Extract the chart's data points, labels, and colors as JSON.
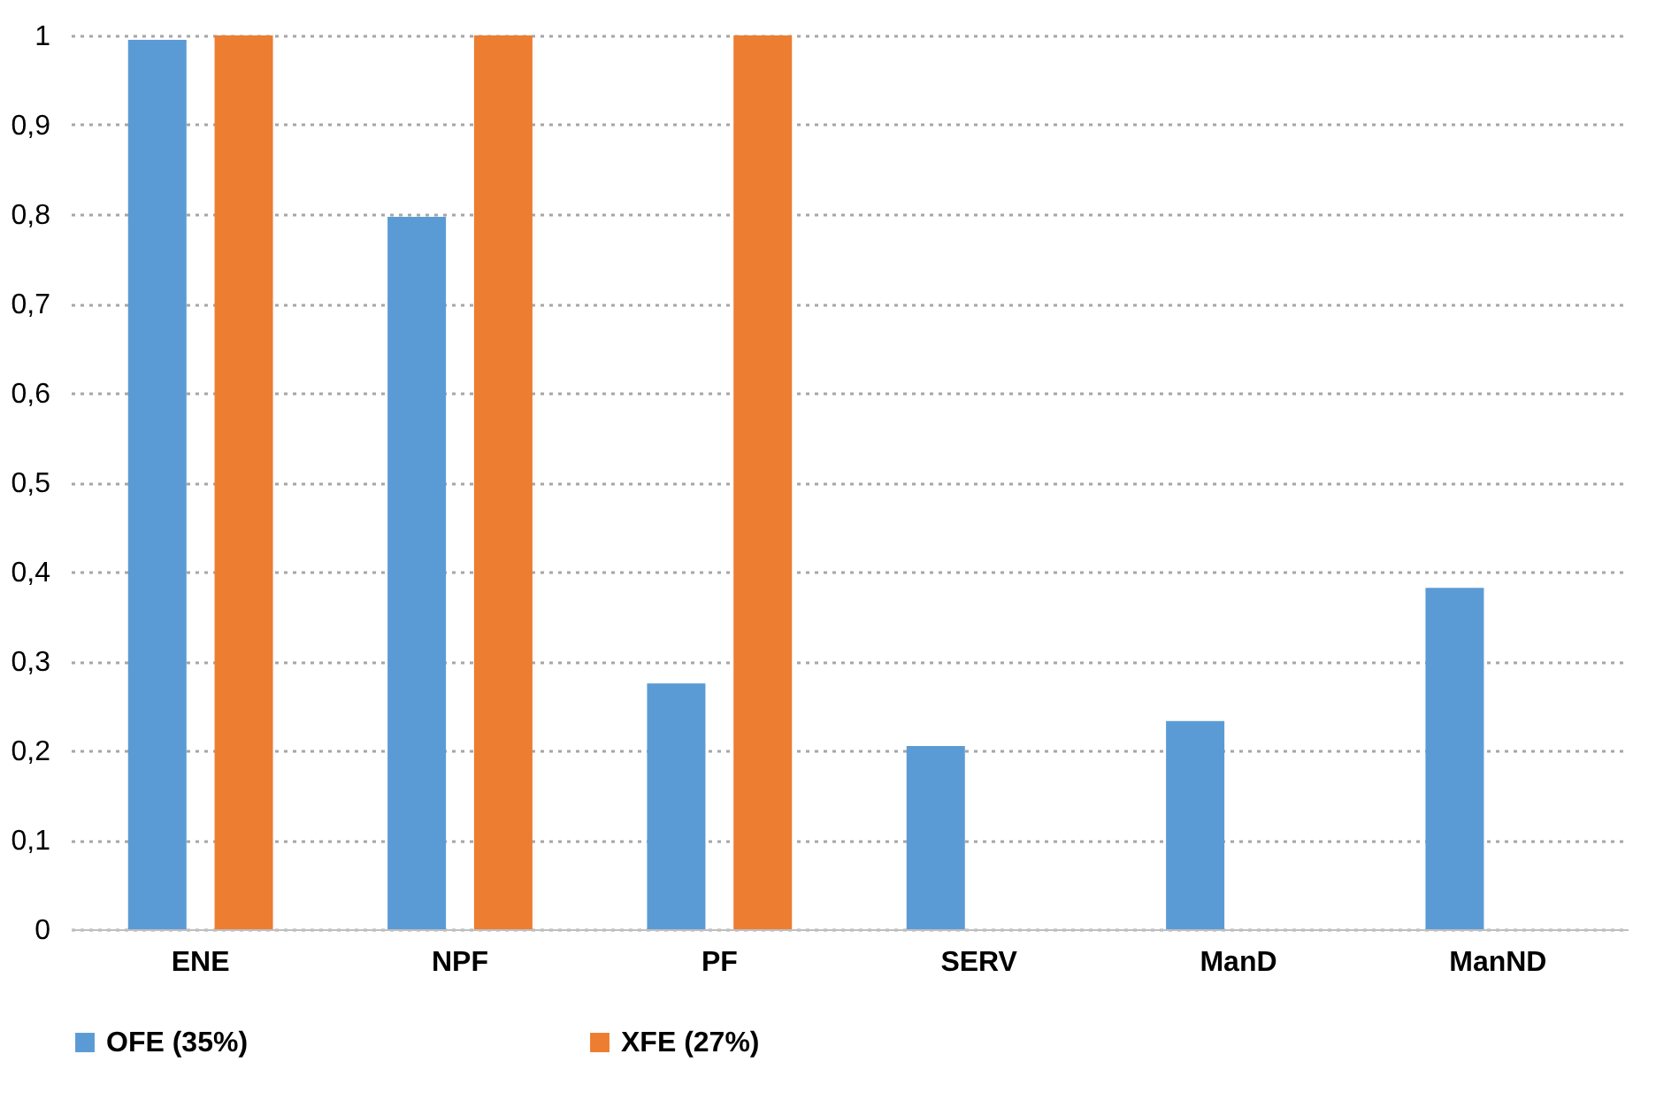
{
  "chart_data": {
    "type": "bar",
    "categories": [
      "ENE",
      "NPF",
      "PF",
      "SERV",
      "ManD",
      "ManND"
    ],
    "series": [
      {
        "name": "OFE (35%)",
        "color": "#5b9bd5",
        "values": [
          0.995,
          0.797,
          0.275,
          0.205,
          0.233,
          0.382
        ]
      },
      {
        "name": "XFE (27%)",
        "color": "#ed7d31",
        "values": [
          1.0,
          1.0,
          1.0,
          null,
          null,
          null
        ]
      }
    ],
    "ylim": [
      0,
      1
    ],
    "yticks": [
      0,
      {
        "value": 0.1,
        "label": "0,1"
      },
      {
        "value": 0.2,
        "label": "0,2"
      },
      {
        "value": 0.3,
        "label": "0,3"
      },
      {
        "value": 0.4,
        "label": "0,4"
      },
      {
        "value": 0.5,
        "label": "0,5"
      },
      {
        "value": 0.6,
        "label": "0,6"
      },
      {
        "value": 0.7,
        "label": "0,7"
      },
      {
        "value": 0.8,
        "label": "0,8"
      },
      {
        "value": 0.9,
        "label": "0,9"
      },
      1
    ],
    "grid": "y",
    "legend": "bottom"
  }
}
